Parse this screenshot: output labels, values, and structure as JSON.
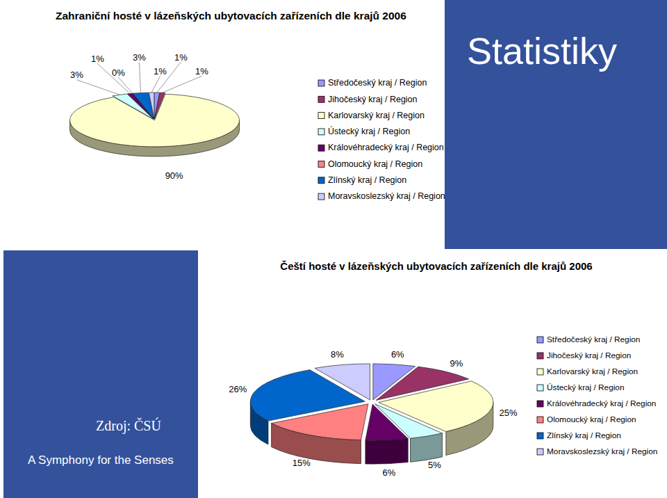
{
  "page": {
    "heading": "Statistiky",
    "source": "Zdroj: ČSÚ",
    "slogan": "A Symphony for the Senses"
  },
  "chart_data": [
    {
      "type": "pie",
      "title": "Zahraniční hosté v lázeňských ubytovacích zařízeních dle krajů 2006",
      "categories": [
        "Středočeský kraj / Region",
        "Jihočeský kraj / Region",
        "Karlovarský kraj / Region",
        "Ústecký kraj / Region",
        "Královéhradecký kraj / Region",
        "Olomoucký kraj / Region",
        "Zlínský kraj / Region",
        "Moravskoslezský kraj / Region"
      ],
      "values": [
        1,
        1,
        90,
        3,
        1,
        0,
        3,
        1
      ],
      "value_labels": [
        "1%",
        "1%",
        "90%",
        "3%",
        "1%",
        "0%",
        "3%",
        "1%"
      ],
      "colors": [
        "#9999ff",
        "#993366",
        "#ffffcc",
        "#ccffff",
        "#660066",
        "#ff8080",
        "#0066cc",
        "#ccccff"
      ],
      "data_labels": true,
      "legend": "right"
    },
    {
      "type": "pie",
      "title": "Čeští hosté v lázeňských ubytovacích zařízeních dle krajů 2006",
      "categories": [
        "Středočeský kraj / Region",
        "Jihočeský kraj / Region",
        "Karlovarský kraj / Region",
        "Ústecký kraj / Region",
        "Královéhradecký kraj / Region",
        "Olomoucký kraj / Region",
        "Zlínský kraj / Region",
        "Moravskoslezský kraj / Region"
      ],
      "values": [
        6,
        9,
        25,
        5,
        6,
        15,
        26,
        8
      ],
      "value_labels": [
        "6%",
        "9%",
        "25%",
        "5%",
        "6%",
        "15%",
        "26%",
        "8%"
      ],
      "colors": [
        "#9999ff",
        "#993366",
        "#ffffcc",
        "#ccffff",
        "#660066",
        "#ff8080",
        "#0066cc",
        "#ccccff"
      ],
      "data_labels": true,
      "legend": "right"
    }
  ]
}
